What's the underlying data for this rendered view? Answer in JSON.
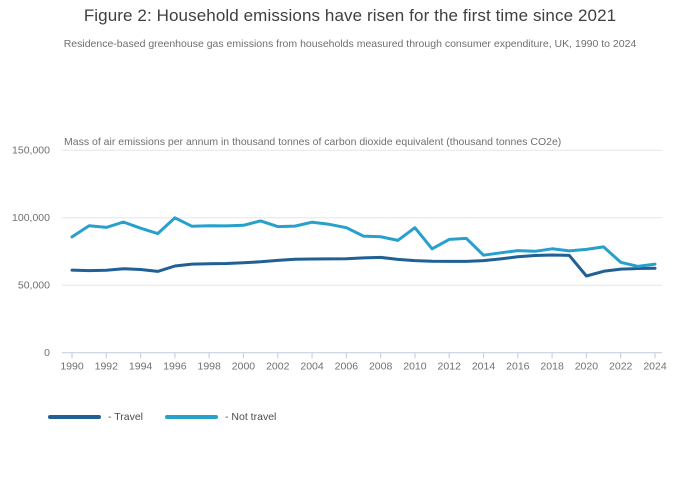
{
  "header": {
    "title": "Figure 2: Household emissions have risen for the first time since 2021",
    "subtitle": "Residence-based greenhouse gas emissions from households measured through consumer expenditure, UK, 1990 to 2024"
  },
  "chart_data": {
    "type": "line",
    "axis_title": "Mass of air emissions per annum in thousand tonnes of carbon dioxide equivalent (thousand tonnes CO2e)",
    "x": [
      1990,
      1991,
      1992,
      1993,
      1994,
      1995,
      1996,
      1997,
      1998,
      1999,
      2000,
      2001,
      2002,
      2003,
      2004,
      2005,
      2006,
      2007,
      2008,
      2009,
      2010,
      2011,
      2012,
      2013,
      2014,
      2015,
      2016,
      2017,
      2018,
      2019,
      2020,
      2021,
      2022,
      2023,
      2024
    ],
    "x_tick_labels": [
      "1990",
      "1992",
      "1994",
      "1996",
      "1998",
      "2000",
      "2002",
      "2004",
      "2006",
      "2008",
      "2010",
      "2012",
      "2014",
      "2016",
      "2018",
      "2020",
      "2022",
      "2024"
    ],
    "y_ticks": [
      0,
      50000,
      100000,
      150000
    ],
    "y_tick_labels": [
      "0",
      "50,000",
      "100,000",
      "150,000"
    ],
    "ylim": [
      0,
      150000
    ],
    "grid": "horizontal-only",
    "legend_position": "bottom-left",
    "series": [
      {
        "name": "- Travel",
        "color": "#206095",
        "values": [
          61200,
          60800,
          61100,
          62200,
          61600,
          60200,
          64200,
          65600,
          65900,
          66100,
          66600,
          67300,
          68400,
          69200,
          69400,
          69500,
          69600,
          70200,
          70600,
          69100,
          68200,
          67700,
          67600,
          67600,
          68200,
          69500,
          71000,
          72000,
          72400,
          72100,
          56800,
          60300,
          61900,
          62400,
          62500
        ]
      },
      {
        "name": "- Not travel",
        "color": "#27a0cc",
        "values": [
          85800,
          94000,
          92800,
          96800,
          92200,
          88200,
          99900,
          93600,
          94100,
          93900,
          94400,
          97600,
          93400,
          93800,
          96700,
          95100,
          92600,
          86400,
          85900,
          83200,
          92600,
          77000,
          83900,
          84700,
          72200,
          74000,
          75600,
          75100,
          77000,
          75400,
          76500,
          78400,
          67000,
          63900,
          65600
        ]
      }
    ],
    "colors": {
      "gridline": "#e6e6e6",
      "axis_line": "#c7d2e0",
      "tick_text": "#707071"
    }
  }
}
